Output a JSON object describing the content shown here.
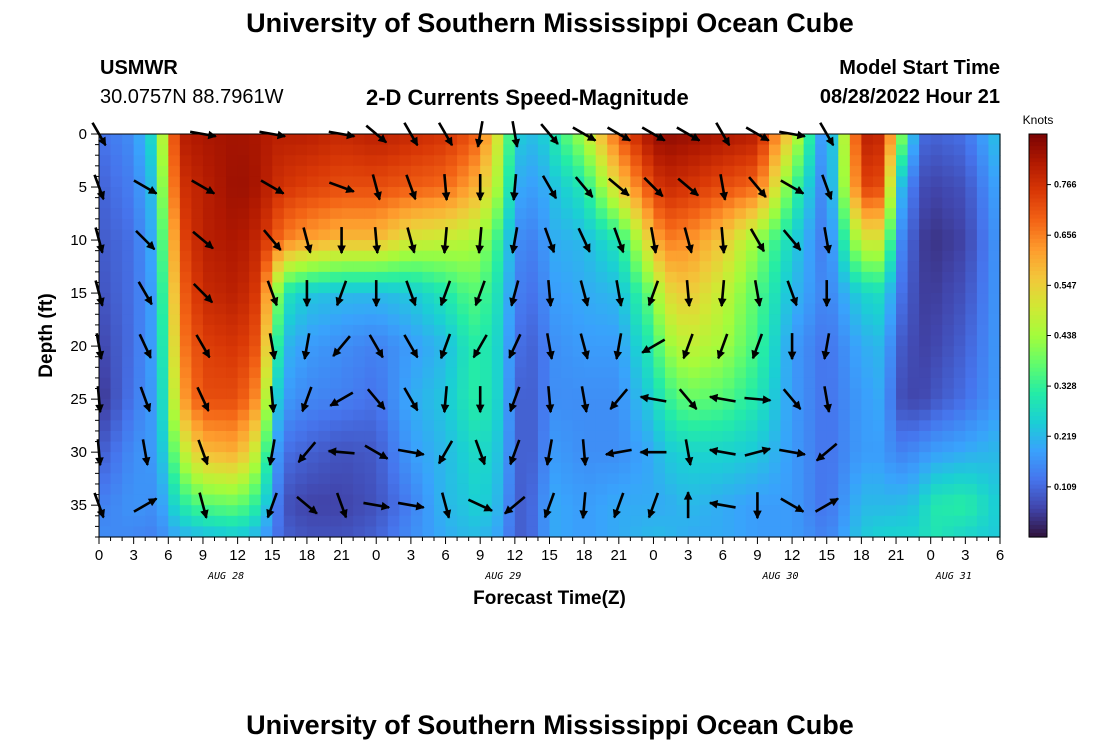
{
  "header": {
    "title": "University of Southern Mississippi Ocean Cube",
    "station_name": "USMWR",
    "station_coords": "30.0757N  88.7961W",
    "product": "2-D Currents Speed-Magnitude",
    "model_start_label": "Model Start Time",
    "model_start_value": "08/28/2022 Hour 21"
  },
  "footer": {
    "title": "University of Southern Mississippi Ocean Cube"
  },
  "chart_data": {
    "type": "heatmap",
    "title": "2-D Currents Speed-Magnitude",
    "xlabel": "Forecast Time(Z)",
    "ylabel": "Depth (ft)",
    "x_unit": "hours from AUG 28 00Z",
    "xlim": [
      0,
      78
    ],
    "x_ticks": [
      0,
      3,
      6,
      9,
      12,
      15,
      18,
      21,
      24,
      27,
      30,
      33,
      36,
      39,
      42,
      45,
      48,
      51,
      54,
      57,
      60,
      63,
      66,
      69,
      72,
      75,
      78
    ],
    "x_tick_labels": [
      "0",
      "3",
      "6",
      "9",
      "12",
      "15",
      "18",
      "21",
      "0",
      "3",
      "6",
      "9",
      "12",
      "15",
      "18",
      "21",
      "0",
      "3",
      "6",
      "9",
      "12",
      "15",
      "18",
      "21",
      "0",
      "3",
      "6"
    ],
    "date_labels": [
      {
        "label": "AUG 28",
        "hour": 11
      },
      {
        "label": "AUG 29",
        "hour": 35
      },
      {
        "label": "AUG 30",
        "hour": 59
      },
      {
        "label": "AUG 31",
        "hour": 74
      }
    ],
    "ylim": [
      0,
      38
    ],
    "y_reversed": true,
    "y_ticks": [
      0,
      5,
      10,
      15,
      20,
      25,
      30,
      35
    ],
    "colorbar": {
      "unit_label": "Knots",
      "range": [
        0,
        0.876
      ],
      "tick_values": [
        0.766,
        0.656,
        0.547,
        0.438,
        0.328,
        0.219,
        0.109
      ],
      "tick_labels": [
        "0.766",
        "0.656",
        "0.547",
        "0.438",
        "0.328",
        "0.219",
        "0.109"
      ],
      "colors": [
        "#30123b",
        "#4145ab",
        "#4675ed",
        "#39a2fc",
        "#1bcfd4",
        "#24eca6",
        "#61fc6c",
        "#a4fc3b",
        "#d1e834",
        "#f3c63a",
        "#fe9b2d",
        "#f36315",
        "#d93806",
        "#b11901",
        "#7a0403"
      ]
    },
    "speed_columns": {
      "x": [
        0,
        3,
        5,
        6,
        7,
        9,
        12,
        14,
        15,
        16,
        18,
        21,
        24,
        27,
        30,
        32,
        33,
        35,
        36,
        38,
        39,
        42,
        45,
        48,
        49,
        51,
        54,
        57,
        60,
        63,
        66,
        68,
        69,
        71,
        72,
        75,
        78
      ],
      "depths": [
        0,
        5,
        10,
        15,
        20,
        25,
        30,
        35,
        38
      ],
      "values": [
        [
          0.12,
          0.1,
          0.09,
          0.08,
          0.06,
          0.04,
          0.09,
          0.14,
          0.16
        ],
        [
          0.16,
          0.14,
          0.12,
          0.12,
          0.12,
          0.13,
          0.16,
          0.17,
          0.15
        ],
        [
          0.3,
          0.25,
          0.22,
          0.2,
          0.2,
          0.19,
          0.18,
          0.16,
          0.14
        ],
        [
          0.62,
          0.58,
          0.5,
          0.45,
          0.4,
          0.36,
          0.3,
          0.22,
          0.18
        ],
        [
          0.8,
          0.76,
          0.72,
          0.68,
          0.65,
          0.6,
          0.45,
          0.3,
          0.2
        ],
        [
          0.82,
          0.8,
          0.8,
          0.78,
          0.74,
          0.72,
          0.58,
          0.36,
          0.22
        ],
        [
          0.83,
          0.84,
          0.82,
          0.8,
          0.76,
          0.72,
          0.6,
          0.38,
          0.24
        ],
        [
          0.82,
          0.82,
          0.78,
          0.74,
          0.7,
          0.62,
          0.45,
          0.3,
          0.2
        ],
        [
          0.8,
          0.78,
          0.72,
          0.5,
          0.4,
          0.3,
          0.22,
          0.18,
          0.14
        ],
        [
          0.8,
          0.76,
          0.66,
          0.3,
          0.22,
          0.18,
          0.12,
          0.08,
          0.1
        ],
        [
          0.8,
          0.74,
          0.62,
          0.24,
          0.18,
          0.15,
          0.1,
          0.06,
          0.08
        ],
        [
          0.78,
          0.72,
          0.58,
          0.22,
          0.16,
          0.14,
          0.08,
          0.06,
          0.08
        ],
        [
          0.8,
          0.72,
          0.58,
          0.22,
          0.14,
          0.12,
          0.09,
          0.08,
          0.1
        ],
        [
          0.78,
          0.7,
          0.5,
          0.24,
          0.18,
          0.2,
          0.18,
          0.14,
          0.16
        ],
        [
          0.76,
          0.68,
          0.48,
          0.3,
          0.22,
          0.24,
          0.22,
          0.22,
          0.2
        ],
        [
          0.72,
          0.62,
          0.46,
          0.36,
          0.3,
          0.3,
          0.26,
          0.24,
          0.22
        ],
        [
          0.68,
          0.58,
          0.44,
          0.36,
          0.32,
          0.32,
          0.28,
          0.26,
          0.22
        ],
        [
          0.45,
          0.4,
          0.3,
          0.26,
          0.24,
          0.24,
          0.22,
          0.2,
          0.18
        ],
        [
          0.25,
          0.2,
          0.16,
          0.14,
          0.12,
          0.1,
          0.1,
          0.09,
          0.09
        ],
        [
          0.22,
          0.18,
          0.14,
          0.12,
          0.1,
          0.1,
          0.1,
          0.12,
          0.12
        ],
        [
          0.28,
          0.22,
          0.2,
          0.18,
          0.16,
          0.16,
          0.18,
          0.2,
          0.2
        ],
        [
          0.45,
          0.3,
          0.22,
          0.2,
          0.18,
          0.16,
          0.16,
          0.18,
          0.18
        ],
        [
          0.7,
          0.55,
          0.3,
          0.22,
          0.18,
          0.16,
          0.16,
          0.2,
          0.2
        ],
        [
          0.84,
          0.74,
          0.58,
          0.4,
          0.32,
          0.26,
          0.2,
          0.2,
          0.22
        ],
        [
          0.85,
          0.78,
          0.66,
          0.52,
          0.42,
          0.32,
          0.24,
          0.2,
          0.22
        ],
        [
          0.84,
          0.76,
          0.64,
          0.56,
          0.48,
          0.38,
          0.26,
          0.22,
          0.2
        ],
        [
          0.82,
          0.72,
          0.56,
          0.48,
          0.44,
          0.36,
          0.26,
          0.2,
          0.2
        ],
        [
          0.8,
          0.68,
          0.42,
          0.36,
          0.34,
          0.3,
          0.24,
          0.18,
          0.18
        ],
        [
          0.52,
          0.36,
          0.26,
          0.22,
          0.18,
          0.18,
          0.18,
          0.18,
          0.18
        ],
        [
          0.12,
          0.12,
          0.12,
          0.14,
          0.12,
          0.12,
          0.12,
          0.12,
          0.14
        ],
        [
          0.8,
          0.74,
          0.5,
          0.26,
          0.2,
          0.18,
          0.18,
          0.22,
          0.24
        ],
        [
          0.78,
          0.72,
          0.5,
          0.28,
          0.22,
          0.2,
          0.18,
          0.22,
          0.26
        ],
        [
          0.5,
          0.26,
          0.18,
          0.14,
          0.1,
          0.08,
          0.14,
          0.22,
          0.26
        ],
        [
          0.12,
          0.08,
          0.06,
          0.06,
          0.06,
          0.06,
          0.16,
          0.24,
          0.26
        ],
        [
          0.1,
          0.06,
          0.04,
          0.05,
          0.06,
          0.08,
          0.18,
          0.3,
          0.3
        ],
        [
          0.12,
          0.08,
          0.06,
          0.08,
          0.1,
          0.12,
          0.2,
          0.32,
          0.26
        ],
        [
          0.24,
          0.2,
          0.18,
          0.18,
          0.18,
          0.18,
          0.22,
          0.24,
          0.24
        ]
      ]
    },
    "vectors": [
      {
        "x": 0,
        "d": [
          [
            0,
            150
          ],
          [
            5,
            160
          ],
          [
            10,
            165
          ],
          [
            15,
            165
          ],
          [
            20,
            170
          ],
          [
            25,
            175
          ],
          [
            30,
            175
          ],
          [
            35,
            160
          ]
        ]
      },
      {
        "x": 4,
        "d": [
          [
            5,
            120
          ],
          [
            10,
            135
          ],
          [
            15,
            150
          ],
          [
            20,
            155
          ],
          [
            25,
            160
          ],
          [
            30,
            170
          ],
          [
            35,
            60
          ]
        ]
      },
      {
        "x": 9,
        "d": [
          [
            0,
            100
          ],
          [
            5,
            120
          ],
          [
            10,
            130
          ],
          [
            15,
            135
          ],
          [
            20,
            150
          ],
          [
            25,
            155
          ],
          [
            30,
            160
          ],
          [
            35,
            165
          ]
        ]
      },
      {
        "x": 15,
        "d": [
          [
            0,
            100
          ],
          [
            5,
            120
          ],
          [
            10,
            140
          ],
          [
            15,
            160
          ],
          [
            20,
            170
          ],
          [
            25,
            175
          ],
          [
            30,
            190
          ],
          [
            35,
            200
          ]
        ]
      },
      {
        "x": 18,
        "d": [
          [
            10,
            165
          ],
          [
            15,
            180
          ],
          [
            20,
            190
          ],
          [
            25,
            200
          ],
          [
            30,
            220
          ],
          [
            35,
            130
          ]
        ]
      },
      {
        "x": 21,
        "d": [
          [
            0,
            100
          ],
          [
            5,
            110
          ],
          [
            10,
            180
          ],
          [
            15,
            200
          ],
          [
            20,
            220
          ],
          [
            25,
            240
          ],
          [
            30,
            275
          ],
          [
            35,
            160
          ]
        ]
      },
      {
        "x": 24,
        "d": [
          [
            0,
            130
          ],
          [
            5,
            165
          ],
          [
            10,
            175
          ],
          [
            15,
            180
          ],
          [
            20,
            150
          ],
          [
            25,
            140
          ],
          [
            30,
            120
          ],
          [
            35,
            100
          ]
        ]
      },
      {
        "x": 27,
        "d": [
          [
            0,
            150
          ],
          [
            5,
            160
          ],
          [
            10,
            165
          ],
          [
            15,
            160
          ],
          [
            20,
            150
          ],
          [
            25,
            150
          ],
          [
            30,
            100
          ],
          [
            35,
            100
          ]
        ]
      },
      {
        "x": 30,
        "d": [
          [
            0,
            150
          ],
          [
            5,
            175
          ],
          [
            10,
            185
          ],
          [
            15,
            200
          ],
          [
            20,
            200
          ],
          [
            25,
            185
          ],
          [
            30,
            210
          ],
          [
            35,
            165
          ]
        ]
      },
      {
        "x": 33,
        "d": [
          [
            0,
            190
          ],
          [
            5,
            180
          ],
          [
            10,
            185
          ],
          [
            15,
            200
          ],
          [
            20,
            210
          ],
          [
            25,
            180
          ],
          [
            30,
            160
          ],
          [
            35,
            115
          ]
        ]
      },
      {
        "x": 36,
        "d": [
          [
            0,
            170
          ],
          [
            5,
            185
          ],
          [
            10,
            190
          ],
          [
            15,
            195
          ],
          [
            20,
            205
          ],
          [
            25,
            200
          ],
          [
            30,
            200
          ],
          [
            35,
            230
          ]
        ]
      },
      {
        "x": 39,
        "d": [
          [
            0,
            140
          ],
          [
            5,
            150
          ],
          [
            10,
            160
          ],
          [
            15,
            175
          ],
          [
            20,
            170
          ],
          [
            25,
            175
          ],
          [
            30,
            190
          ],
          [
            35,
            200
          ]
        ]
      },
      {
        "x": 42,
        "d": [
          [
            0,
            120
          ],
          [
            5,
            140
          ],
          [
            10,
            155
          ],
          [
            15,
            165
          ],
          [
            20,
            165
          ],
          [
            25,
            170
          ],
          [
            30,
            175
          ],
          [
            35,
            185
          ]
        ]
      },
      {
        "x": 45,
        "d": [
          [
            0,
            120
          ],
          [
            5,
            130
          ],
          [
            10,
            160
          ],
          [
            15,
            170
          ],
          [
            20,
            190
          ],
          [
            25,
            220
          ],
          [
            30,
            260
          ],
          [
            35,
            200
          ]
        ]
      },
      {
        "x": 48,
        "d": [
          [
            0,
            120
          ],
          [
            5,
            135
          ],
          [
            10,
            170
          ],
          [
            15,
            200
          ],
          [
            20,
            240
          ],
          [
            25,
            280
          ],
          [
            30,
            270
          ],
          [
            35,
            200
          ]
        ]
      },
      {
        "x": 51,
        "d": [
          [
            0,
            120
          ],
          [
            5,
            130
          ],
          [
            10,
            165
          ],
          [
            15,
            175
          ],
          [
            20,
            200
          ],
          [
            25,
            140
          ],
          [
            30,
            170
          ],
          [
            35,
            0
          ]
        ]
      },
      {
        "x": 54,
        "d": [
          [
            0,
            150
          ],
          [
            5,
            170
          ],
          [
            10,
            175
          ],
          [
            15,
            185
          ],
          [
            20,
            200
          ],
          [
            25,
            280
          ],
          [
            30,
            280
          ],
          [
            35,
            280
          ]
        ]
      },
      {
        "x": 57,
        "d": [
          [
            0,
            120
          ],
          [
            5,
            140
          ],
          [
            10,
            150
          ],
          [
            15,
            170
          ],
          [
            20,
            200
          ],
          [
            25,
            95
          ],
          [
            30,
            75
          ],
          [
            35,
            180
          ]
        ]
      },
      {
        "x": 60,
        "d": [
          [
            0,
            100
          ],
          [
            5,
            120
          ],
          [
            10,
            140
          ],
          [
            15,
            160
          ],
          [
            20,
            180
          ],
          [
            25,
            140
          ],
          [
            30,
            100
          ],
          [
            35,
            120
          ]
        ]
      },
      {
        "x": 63,
        "d": [
          [
            0,
            150
          ],
          [
            5,
            160
          ],
          [
            10,
            170
          ],
          [
            15,
            180
          ],
          [
            20,
            190
          ],
          [
            25,
            170
          ],
          [
            30,
            230
          ],
          [
            35,
            60
          ]
        ]
      }
    ]
  }
}
